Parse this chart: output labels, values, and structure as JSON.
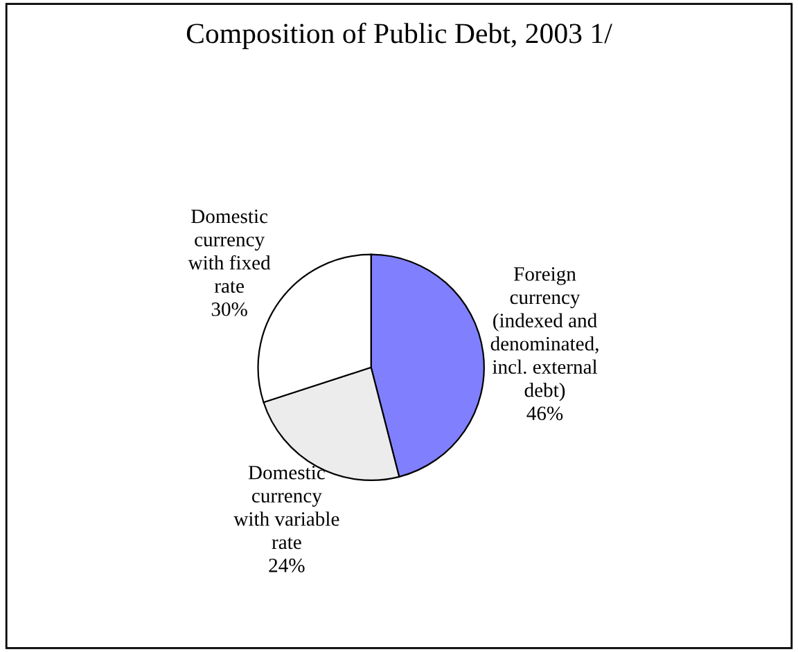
{
  "chart_data": {
    "type": "pie",
    "title": "Composition of Public Debt, 2003 1/",
    "categories": [
      "Foreign\ncurrency\n(indexed and\ndenominated,\nincl. external\ndebt)",
      "Domestic\ncurrency\nwith variable\nrate",
      "Domestic\ncurrency\nwith fixed\nrate"
    ],
    "values": [
      46,
      24,
      30
    ],
    "value_labels": [
      "46%",
      "24%",
      "30%"
    ],
    "colors": [
      "#8080ff",
      "#ececec",
      "#ffffff"
    ]
  }
}
